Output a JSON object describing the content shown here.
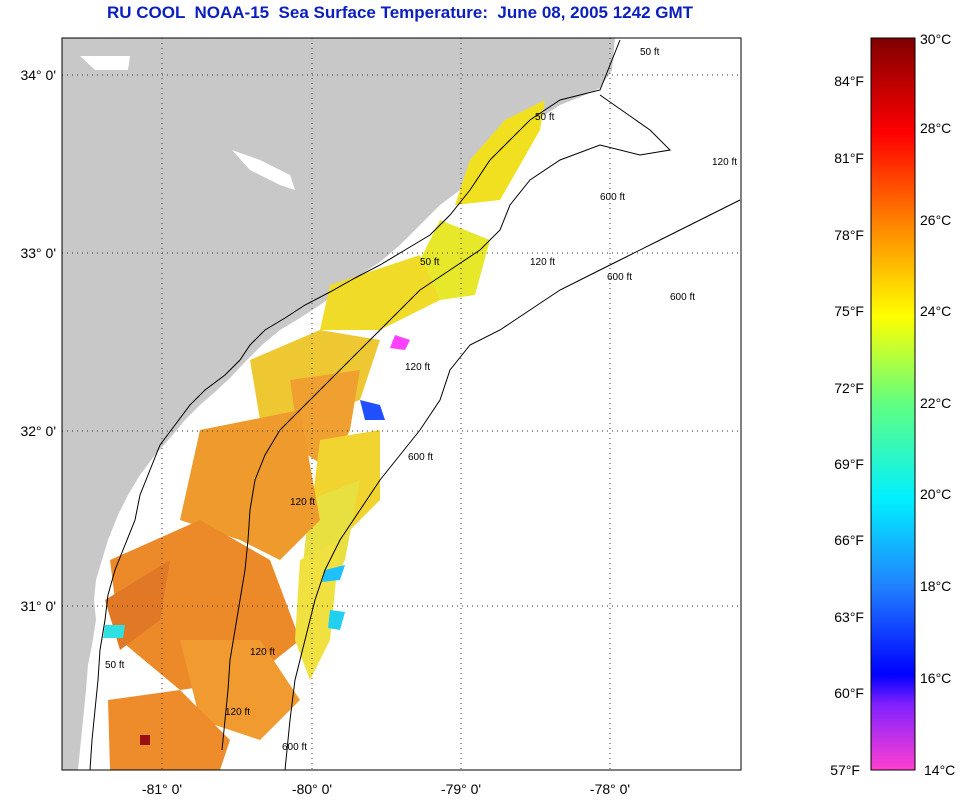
{
  "title": "RU COOL  NOAA-15  Sea Surface Temperature:  June 08, 2005 1242 GMT",
  "map": {
    "lat_labels": [
      "34° 0'",
      "33° 0'",
      "32° 0'",
      "31° 0'"
    ],
    "lon_labels": [
      "-81° 0'",
      "-80° 0'",
      "-79° 0'",
      "-78° 0'"
    ],
    "contour_labels": [
      "50 ft",
      "50 ft",
      "50 ft",
      "50 ft",
      "120 ft",
      "120 ft",
      "120 ft",
      "120 ft",
      "120 ft",
      "120 ft",
      "600 ft",
      "600 ft",
      "600 ft",
      "600 ft",
      "600 ft"
    ],
    "land_color": "#c8c8c8",
    "cloud_color": "#ffffff"
  },
  "colorbar": {
    "fahrenheit_labels": [
      "84°F",
      "81°F",
      "78°F",
      "75°F",
      "72°F",
      "69°F",
      "66°F",
      "63°F",
      "60°F",
      "57°F"
    ],
    "celsius_labels": [
      "30°C",
      "28°C",
      "26°C",
      "24°C",
      "22°C",
      "20°C",
      "18°C",
      "16°C",
      "14°C"
    ],
    "range_c": [
      14,
      30
    ]
  }
}
